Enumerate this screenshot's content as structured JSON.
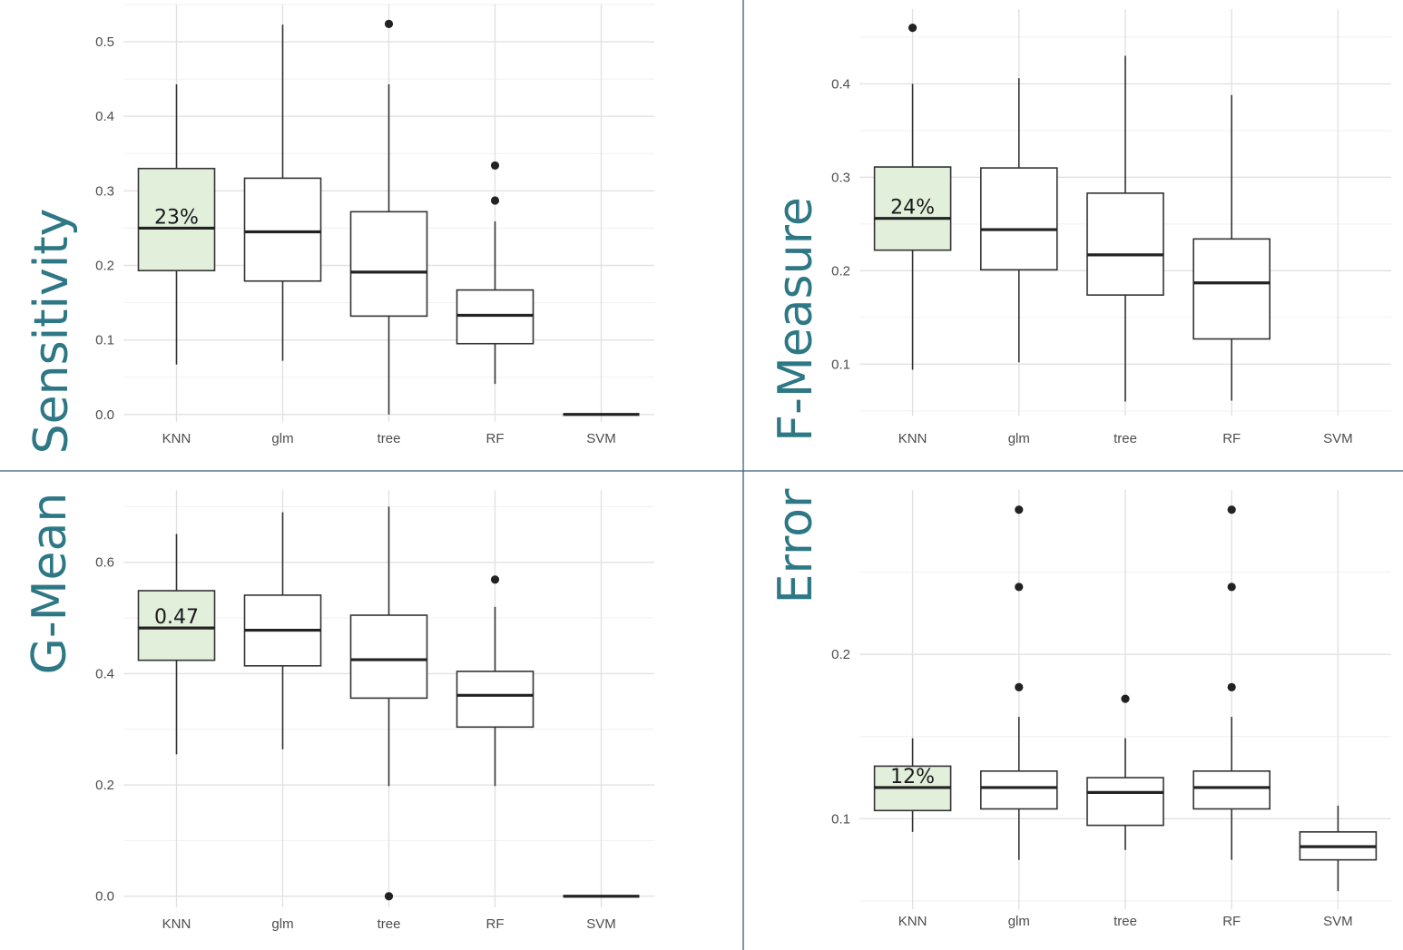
{
  "highlight_color": "#e2efdb",
  "label_color": "#2e7785",
  "chart_data": [
    {
      "type": "box",
      "ylabel": "Sensitivity",
      "categories": [
        "KNN",
        "glm",
        "tree",
        "RF",
        "SVM"
      ],
      "yticks": [
        0.0,
        0.1,
        0.2,
        0.3,
        0.4,
        0.5
      ],
      "ytick_labels": [
        "0.0",
        "0.1",
        "0.2",
        "0.3",
        "0.4",
        "0.5"
      ],
      "ylim": [
        -0.01,
        0.55
      ],
      "grid": true,
      "highlight_category": "KNN",
      "annotation": "23%",
      "boxes": [
        {
          "category": "KNN",
          "min": 0.067,
          "q1": 0.193,
          "median": 0.25,
          "q3": 0.33,
          "max": 0.443,
          "outliers": []
        },
        {
          "category": "glm",
          "min": 0.072,
          "q1": 0.179,
          "median": 0.245,
          "q3": 0.317,
          "max": 0.523,
          "outliers": []
        },
        {
          "category": "tree",
          "min": 0.0,
          "q1": 0.132,
          "median": 0.191,
          "q3": 0.272,
          "max": 0.443,
          "outliers": [
            0.524
          ]
        },
        {
          "category": "RF",
          "min": 0.041,
          "q1": 0.095,
          "median": 0.133,
          "q3": 0.167,
          "max": 0.259,
          "outliers": [
            0.287,
            0.334
          ]
        },
        {
          "category": "SVM",
          "min": 0.0,
          "q1": 0.0,
          "median": 0.0,
          "q3": 0.0,
          "max": 0.0,
          "outliers": []
        }
      ]
    },
    {
      "type": "box",
      "ylabel": "F-Measure",
      "categories": [
        "KNN",
        "glm",
        "tree",
        "RF",
        "SVM"
      ],
      "yticks": [
        0.1,
        0.2,
        0.3,
        0.4
      ],
      "ytick_labels": [
        "0.1",
        "0.2",
        "0.3",
        "0.4"
      ],
      "ylim": [
        0.045,
        0.48
      ],
      "grid": true,
      "highlight_category": "KNN",
      "annotation": "24%",
      "boxes": [
        {
          "category": "KNN",
          "min": 0.094,
          "q1": 0.222,
          "median": 0.256,
          "q3": 0.311,
          "max": 0.4,
          "outliers": [
            0.46
          ]
        },
        {
          "category": "glm",
          "min": 0.102,
          "q1": 0.201,
          "median": 0.244,
          "q3": 0.31,
          "max": 0.406,
          "outliers": []
        },
        {
          "category": "tree",
          "min": 0.06,
          "q1": 0.174,
          "median": 0.217,
          "q3": 0.283,
          "max": 0.43,
          "outliers": []
        },
        {
          "category": "RF",
          "min": 0.061,
          "q1": 0.127,
          "median": 0.187,
          "q3": 0.234,
          "max": 0.388,
          "outliers": []
        }
      ]
    },
    {
      "type": "box",
      "ylabel": "G-Mean",
      "categories": [
        "KNN",
        "glm",
        "tree",
        "RF",
        "SVM"
      ],
      "yticks": [
        0.0,
        0.2,
        0.4,
        0.6
      ],
      "ytick_labels": [
        "0.0",
        "0.2",
        "0.4",
        "0.6"
      ],
      "ylim": [
        -0.02,
        0.73
      ],
      "grid": true,
      "highlight_category": "KNN",
      "annotation": "0.47",
      "boxes": [
        {
          "category": "KNN",
          "min": 0.255,
          "q1": 0.424,
          "median": 0.482,
          "q3": 0.549,
          "max": 0.651,
          "outliers": []
        },
        {
          "category": "glm",
          "min": 0.264,
          "q1": 0.414,
          "median": 0.478,
          "q3": 0.541,
          "max": 0.69,
          "outliers": []
        },
        {
          "category": "tree",
          "min": 0.198,
          "q1": 0.356,
          "median": 0.425,
          "q3": 0.505,
          "max": 0.7,
          "outliers": [
            0.0
          ]
        },
        {
          "category": "RF",
          "min": 0.198,
          "q1": 0.304,
          "median": 0.361,
          "q3": 0.404,
          "max": 0.52,
          "outliers": [
            0.569
          ]
        },
        {
          "category": "SVM",
          "min": 0.0,
          "q1": 0.0,
          "median": 0.0,
          "q3": 0.0,
          "max": 0.0,
          "outliers": []
        }
      ]
    },
    {
      "type": "box",
      "ylabel": "Error",
      "categories": [
        "KNN",
        "glm",
        "tree",
        "RF",
        "SVM"
      ],
      "yticks": [
        0.1,
        0.2
      ],
      "ytick_labels": [
        "0.1",
        "0.2"
      ],
      "ylim": [
        0.045,
        0.3
      ],
      "grid": true,
      "highlight_category": "KNN",
      "annotation": "12%",
      "boxes": [
        {
          "category": "KNN",
          "min": 0.092,
          "q1": 0.105,
          "median": 0.119,
          "q3": 0.132,
          "max": 0.149,
          "outliers": []
        },
        {
          "category": "glm",
          "min": 0.075,
          "q1": 0.106,
          "median": 0.119,
          "q3": 0.129,
          "max": 0.162,
          "outliers": [
            0.18,
            0.241,
            0.288
          ]
        },
        {
          "category": "tree",
          "min": 0.081,
          "q1": 0.096,
          "median": 0.116,
          "q3": 0.125,
          "max": 0.149,
          "outliers": [
            0.173
          ]
        },
        {
          "category": "RF",
          "min": 0.075,
          "q1": 0.106,
          "median": 0.119,
          "q3": 0.129,
          "max": 0.162,
          "outliers": [
            0.18,
            0.241,
            0.288
          ]
        },
        {
          "category": "SVM",
          "min": 0.056,
          "q1": 0.075,
          "median": 0.083,
          "q3": 0.092,
          "max": 0.108,
          "outliers": []
        }
      ]
    }
  ]
}
